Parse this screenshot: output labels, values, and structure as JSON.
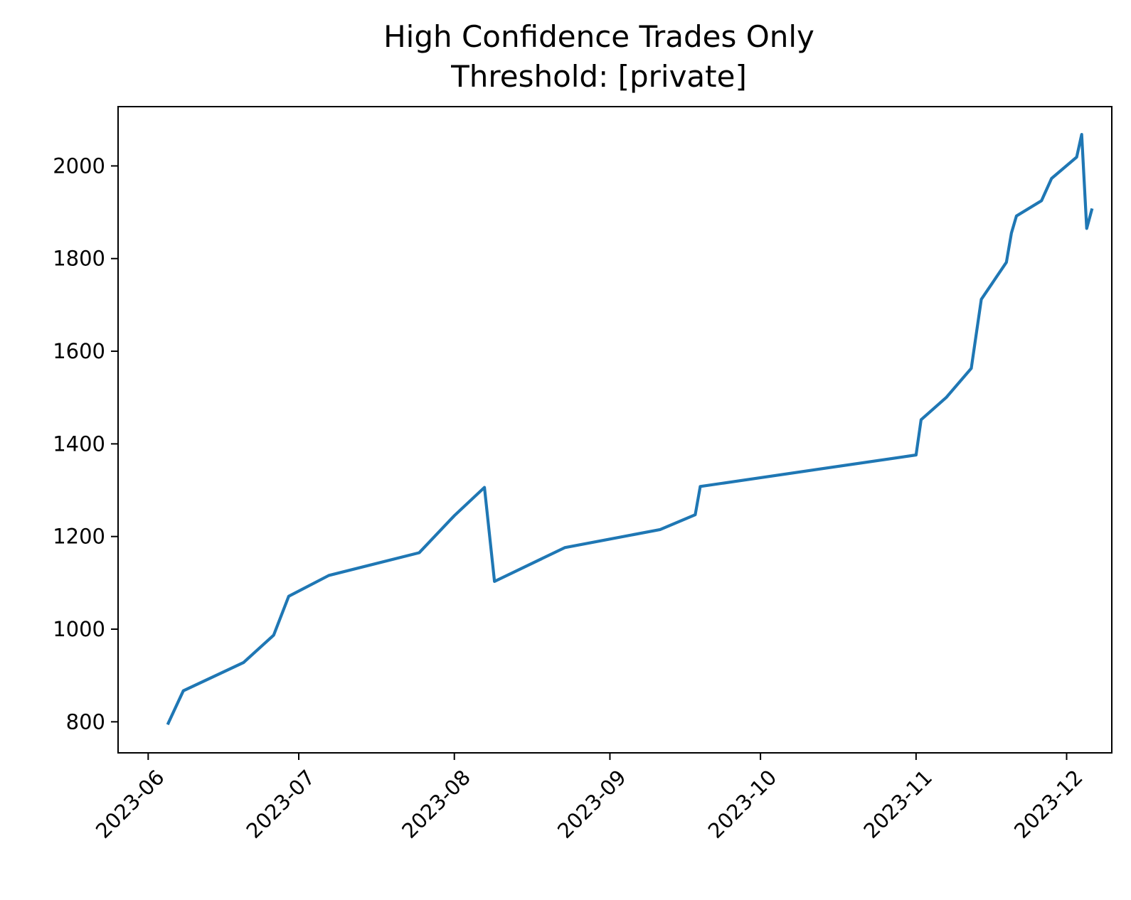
{
  "chart_data": {
    "type": "line",
    "title": "High Confidence Trades Only",
    "subtitle": "Threshold: [private]",
    "xlabel": "",
    "ylabel": "",
    "grid": false,
    "line_color": "#1f77b4",
    "x_tick_labels": [
      "2023-06",
      "2023-07",
      "2023-08",
      "2023-09",
      "2023-10",
      "2023-11",
      "2023-12"
    ],
    "y_ticks": [
      800,
      1000,
      1200,
      1400,
      1600,
      1800,
      2000
    ],
    "xlim": [
      "2023-05-26",
      "2023-12-10"
    ],
    "ylim": [
      733,
      2128
    ],
    "series": [
      {
        "x": [
          "2023-06-05",
          "2023-06-08",
          "2023-06-20",
          "2023-06-26",
          "2023-06-29",
          "2023-07-07",
          "2023-07-25",
          "2023-08-01",
          "2023-08-07",
          "2023-08-09",
          "2023-08-23",
          "2023-09-11",
          "2023-09-18",
          "2023-09-19",
          "2023-11-01",
          "2023-11-02",
          "2023-11-07",
          "2023-11-12",
          "2023-11-14",
          "2023-11-19",
          "2023-11-20",
          "2023-11-21",
          "2023-11-26",
          "2023-11-28",
          "2023-12-03",
          "2023-12-04",
          "2023-12-05",
          "2023-12-06"
        ],
        "y": [
          797,
          867,
          928,
          987,
          1071,
          1116,
          1165,
          1245,
          1306,
          1103,
          1176,
          1215,
          1247,
          1308,
          1376,
          1452,
          1500,
          1563,
          1712,
          1792,
          1855,
          1892,
          1925,
          1973,
          2019,
          2068,
          1865,
          1905
        ]
      }
    ]
  }
}
